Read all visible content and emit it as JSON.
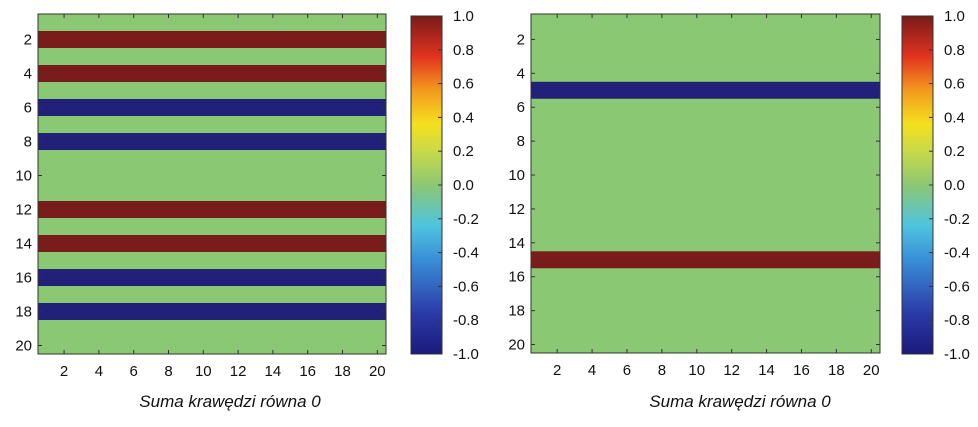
{
  "chart_data": [
    {
      "type": "heatmap",
      "caption": "Suma krawędzi równa 0",
      "rows": 20,
      "cols": 20,
      "x_ticks": [
        "2",
        "4",
        "6",
        "8",
        "10",
        "12",
        "14",
        "16",
        "18",
        "20"
      ],
      "y_ticks": [
        "2",
        "4",
        "6",
        "8",
        "10",
        "12",
        "14",
        "16",
        "18",
        "20"
      ],
      "row_values": [
        0,
        1,
        0,
        1,
        0,
        -1,
        0,
        -1,
        0,
        0,
        0,
        1,
        0,
        1,
        0,
        -1,
        0,
        -1,
        0,
        0
      ],
      "clim": [
        -1.0,
        1.0
      ],
      "colorbar_ticks": [
        "1.0",
        "0.8",
        "0.6",
        "0.4",
        "0.2",
        "0.0",
        "-0.2",
        "-0.4",
        "-0.6",
        "-0.8",
        "-1.0"
      ]
    },
    {
      "type": "heatmap",
      "caption": "Suma krawędzi równa 0",
      "rows": 20,
      "cols": 20,
      "x_ticks": [
        "2",
        "4",
        "6",
        "8",
        "10",
        "12",
        "14",
        "16",
        "18",
        "20"
      ],
      "y_ticks": [
        "2",
        "4",
        "6",
        "8",
        "10",
        "12",
        "14",
        "16",
        "18",
        "20"
      ],
      "row_values": [
        0,
        0,
        0,
        0,
        -1,
        0,
        0,
        0,
        0,
        0,
        0,
        0,
        0,
        0,
        1,
        0,
        0,
        0,
        0,
        0
      ],
      "clim": [
        -1.0,
        1.0
      ],
      "colorbar_ticks": [
        "1.0",
        "0.8",
        "0.6",
        "0.4",
        "0.2",
        "0.0",
        "-0.2",
        "-0.4",
        "-0.6",
        "-0.8",
        "-1.0"
      ]
    }
  ]
}
